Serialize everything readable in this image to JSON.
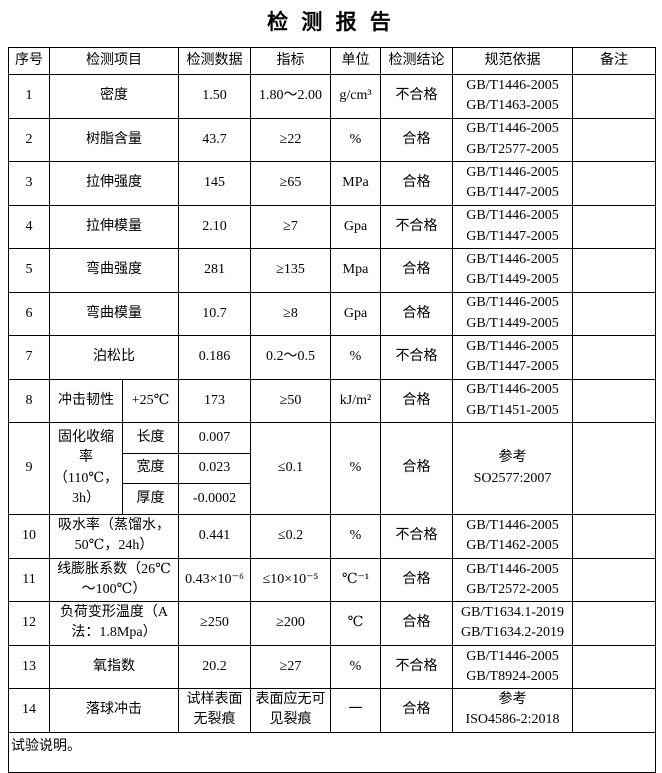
{
  "title": "检 测 报 告",
  "header": [
    "序号",
    "检测项目",
    "检测数据",
    "指标",
    "单位",
    "检测结论",
    "规范依据",
    "备注"
  ],
  "rows": [
    {
      "no": "1",
      "item": "密度",
      "data": "1.50",
      "index": "1.80～2.00",
      "unit": "g/cm³",
      "result": "不合格",
      "standard": [
        "GB/T1446-2005",
        "GB/T1463-2005"
      ]
    },
    {
      "no": "2",
      "item": "树脂含量",
      "data": "43.7",
      "index": "≥22",
      "unit": "%",
      "result": "合格",
      "standard": [
        "GB/T1446-2005",
        "GB/T2577-2005"
      ]
    },
    {
      "no": "3",
      "item": "拉伸强度",
      "data": "145",
      "index": "≥65",
      "unit": "MPa",
      "result": "合格",
      "standard": [
        "GB/T1446-2005",
        "GB/T1447-2005"
      ]
    },
    {
      "no": "4",
      "item": "拉伸模量",
      "data": "2.10",
      "index": "≥7",
      "unit": "Gpa",
      "result": "不合格",
      "standard": [
        "GB/T1446-2005",
        "GB/T1447-2005"
      ]
    },
    {
      "no": "5",
      "item": "弯曲强度",
      "data": "281",
      "index": "≥135",
      "unit": "Mpa",
      "result": "合格",
      "standard": [
        "GB/T1446-2005",
        "GB/T1449-2005"
      ]
    },
    {
      "no": "6",
      "item": "弯曲模量",
      "data": "10.7",
      "index": "≥8",
      "unit": "Gpa",
      "result": "合格",
      "standard": [
        "GB/T1446-2005",
        "GB/T1449-2005"
      ]
    },
    {
      "no": "7",
      "item": "泊松比",
      "data": "0.186",
      "index": "0.2～0.5",
      "unit": "%",
      "result": "不合格",
      "standard": [
        "GB/T1446-2005",
        "GB/T1447-2005"
      ]
    },
    {
      "no": "8",
      "item": "冲击韧性",
      "condition": "+25℃",
      "data": "173",
      "index": "≥50",
      "unit": "kJ/m²",
      "result": "合格",
      "standard": [
        "GB/T1446-2005",
        "GB/T1451-2005"
      ]
    },
    {
      "no": "9",
      "item": "固化收缩率（110℃，3h）",
      "sub": [
        {
          "name": "长度",
          "data": "0.007"
        },
        {
          "name": "宽度",
          "data": "0.023"
        },
        {
          "name": "厚度",
          "data": "-0.0002"
        }
      ],
      "index": "≤0.1",
      "unit": "%",
      "result": "合格",
      "standard": [
        "参考",
        "SO2577:2007"
      ]
    },
    {
      "no": "10",
      "item": "吸水率（蒸馏水，50℃，24h）",
      "data": "0.441",
      "index": "≤0.2",
      "unit": "%",
      "result": "不合格",
      "standard": [
        "GB/T1446-2005",
        "GB/T1462-2005"
      ]
    },
    {
      "no": "11",
      "item": "线膨胀系数（26℃～100℃）",
      "data": "0.43×10⁻⁶",
      "index": "≤10×10⁻⁵",
      "unit": "℃⁻¹",
      "result": "合格",
      "standard": [
        "GB/T1446-2005",
        "GB/T2572-2005"
      ]
    },
    {
      "no": "12",
      "item": "负荷变形温度（A法：1.8Mpa）",
      "data": "≥250",
      "index": "≥200",
      "unit": "℃",
      "result": "合格",
      "standard": [
        "GB/T1634.1-2019",
        "GB/T1634.2-2019"
      ]
    },
    {
      "no": "13",
      "item": "氧指数",
      "data": "20.2",
      "index": "≥27",
      "unit": "%",
      "result": "不合格",
      "standard": [
        "GB/T1446-2005",
        "GB/T8924-2005"
      ]
    },
    {
      "no": "14",
      "item": "落球冲击",
      "data": "试样表面无裂痕",
      "index": "表面应无可见裂痕",
      "unit": "一",
      "result": "合格",
      "standard": [
        "参考",
        "ISO4586-2:2018"
      ]
    }
  ],
  "note": "试验说明。"
}
